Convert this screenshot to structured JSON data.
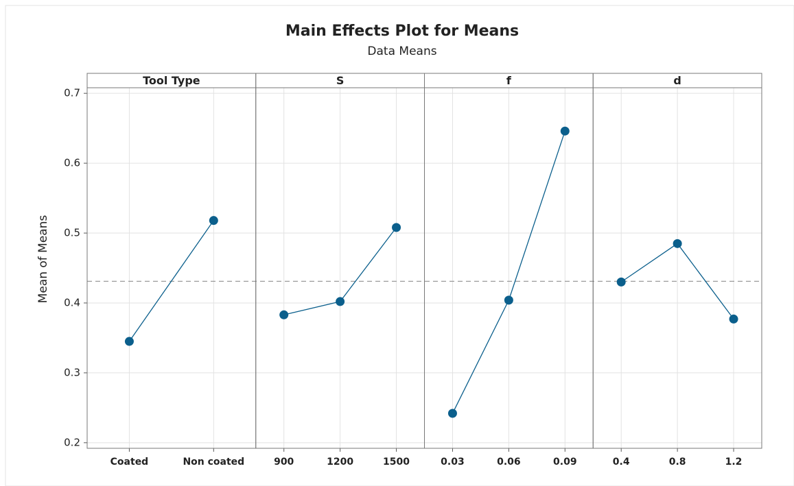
{
  "chart_data": {
    "type": "line",
    "title": "Main Effects Plot for Means",
    "subtitle": "Data Means",
    "y_label": "Mean of Means",
    "ylim": [
      0.192,
      0.708
    ],
    "yticks": [
      0.2,
      0.3,
      0.4,
      0.5,
      0.6,
      0.7
    ],
    "grid": true,
    "color": "#0b5f8c",
    "reference_line": 0.431,
    "panels": [
      {
        "name": "Tool Type",
        "categories": [
          "Coated",
          "Non coated"
        ],
        "values": [
          0.345,
          0.518
        ]
      },
      {
        "name": "S",
        "categories": [
          "900",
          "1200",
          "1500"
        ],
        "values": [
          0.383,
          0.402,
          0.508
        ]
      },
      {
        "name": "f",
        "categories": [
          "0.03",
          "0.06",
          "0.09"
        ],
        "values": [
          0.242,
          0.404,
          0.646
        ]
      },
      {
        "name": "d",
        "categories": [
          "0.4",
          "0.8",
          "1.2"
        ],
        "values": [
          0.43,
          0.485,
          0.377
        ]
      }
    ]
  }
}
